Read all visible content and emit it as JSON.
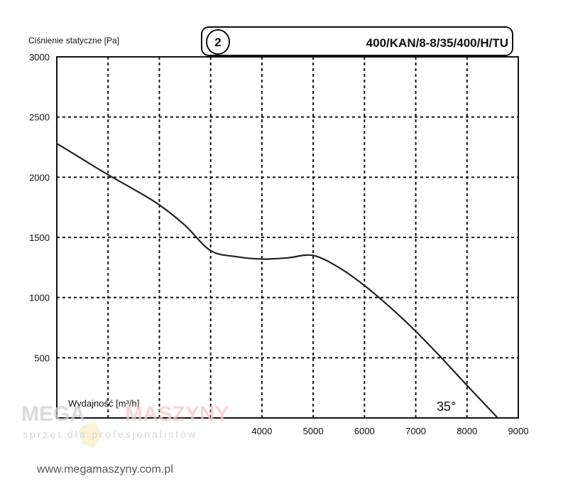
{
  "chart_data": {
    "type": "line",
    "ylabel": "Ciśnienie statyczne [Pa]",
    "xlabel": "Wydajność [m³/h]",
    "curve_id": "2",
    "model": "400/KAN/8-8/35/400/H/TU",
    "blade_angle": "35°",
    "xlim": [
      0,
      9000
    ],
    "ylim": [
      0,
      3000
    ],
    "xticks": [
      4000,
      5000,
      6000,
      7000,
      8000,
      9000
    ],
    "xtick_labels": [
      "4000",
      "5000",
      "6000",
      "7000",
      "8000",
      "9000"
    ],
    "yticks": [
      500,
      1000,
      1500,
      2000,
      2500,
      3000
    ],
    "ytick_labels": [
      "500",
      "1000",
      "1500",
      "2000",
      "2500",
      "3000"
    ],
    "grid": true,
    "series": [
      {
        "x": [
          0,
          500,
          1000,
          1500,
          2000,
          2500,
          3000,
          3500,
          4000,
          4500,
          5000,
          5500,
          6000,
          6500,
          7000,
          7500,
          8000,
          8600
        ],
        "y": [
          2280,
          2150,
          2020,
          1900,
          1770,
          1600,
          1390,
          1340,
          1320,
          1330,
          1350,
          1250,
          1100,
          920,
          720,
          500,
          270,
          0
        ]
      }
    ]
  },
  "watermark": {
    "brand_left": "MEGA",
    "brand_right": "MASZYNY",
    "tagline": "sprzęt dla profesjonalistów",
    "colors": {
      "left": "#cfcfcf",
      "right": "#f3c9c9",
      "tagline": "#c9c9c9"
    }
  },
  "url": "www.megamaszyny.com.pl"
}
